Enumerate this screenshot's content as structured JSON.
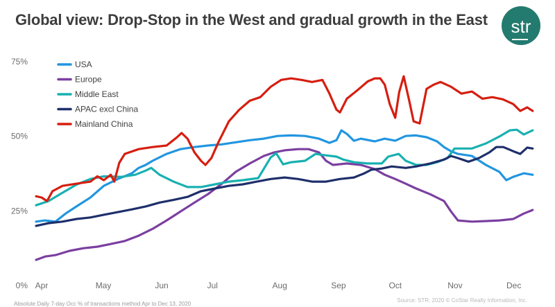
{
  "header": {
    "title": "Global view: Drop-Stop in the West and gradual growth in the East",
    "logo_text": "str"
  },
  "footer": {
    "source": "Source: STR. 2020 © CoStar Realty Information, Inc.",
    "footnote": "Absolute Daily 7-day Occ % of transactions method Apr to Dec 13, 2020"
  },
  "chart_data": {
    "type": "line",
    "title": "Global view: Drop-Stop in the West and gradual growth in the East",
    "xlabel": "",
    "ylabel": "",
    "x_unit": "fraction of period Apr 1 – mid Dec 2020",
    "x_tick_labels": [
      "Apr",
      "May",
      "Jun",
      "Jul",
      "Aug",
      "Sep",
      "Oct",
      "Nov",
      "Dec"
    ],
    "x_tick_positions": [
      0.0,
      0.124,
      0.241,
      0.343,
      0.478,
      0.596,
      0.71,
      0.83,
      0.948
    ],
    "y_tick_labels": [
      "0%",
      "25%",
      "50%",
      "75%"
    ],
    "y_ticks": [
      0,
      25,
      50,
      75
    ],
    "ylim": [
      0,
      75
    ],
    "grid": false,
    "legend_position": "top-left",
    "series": [
      {
        "name": "USA",
        "color": "#2196e0",
        "x": [
          0.0,
          0.018,
          0.039,
          0.06,
          0.081,
          0.109,
          0.136,
          0.164,
          0.192,
          0.206,
          0.22,
          0.234,
          0.262,
          0.29,
          0.318,
          0.345,
          0.373,
          0.401,
          0.429,
          0.457,
          0.485,
          0.512,
          0.54,
          0.568,
          0.589,
          0.603,
          0.613,
          0.624,
          0.638,
          0.652,
          0.68,
          0.7,
          0.721,
          0.742,
          0.763,
          0.784,
          0.805,
          0.819,
          0.833,
          0.847,
          0.875,
          0.903,
          0.93,
          0.944,
          0.958,
          0.979,
          0.997
        ],
        "values": [
          21.4,
          21.8,
          21.4,
          24.2,
          26.5,
          29.5,
          33.4,
          35.7,
          37.6,
          39.4,
          40.4,
          41.8,
          44.1,
          45.7,
          46.4,
          46.9,
          47.3,
          48.0,
          48.7,
          49.2,
          50.1,
          50.3,
          50.1,
          49.2,
          47.8,
          48.7,
          52.0,
          50.8,
          48.5,
          49.2,
          48.3,
          49.2,
          48.5,
          50.1,
          50.3,
          49.7,
          48.3,
          46.4,
          45.0,
          44.1,
          43.4,
          40.4,
          38.1,
          35.3,
          36.4,
          37.6,
          37.1
        ]
      },
      {
        "name": "Europe",
        "color": "#7b3fa0",
        "x": [
          0.0,
          0.018,
          0.039,
          0.067,
          0.095,
          0.123,
          0.15,
          0.178,
          0.206,
          0.234,
          0.262,
          0.29,
          0.318,
          0.345,
          0.373,
          0.401,
          0.429,
          0.457,
          0.478,
          0.499,
          0.526,
          0.547,
          0.568,
          0.582,
          0.596,
          0.624,
          0.652,
          0.68,
          0.7,
          0.721,
          0.742,
          0.763,
          0.791,
          0.819,
          0.833,
          0.847,
          0.875,
          0.903,
          0.93,
          0.958,
          0.979,
          0.997
        ],
        "values": [
          8.6,
          9.7,
          10.2,
          11.6,
          12.5,
          13.0,
          13.9,
          14.9,
          16.7,
          19.0,
          21.8,
          24.8,
          27.8,
          30.6,
          34.1,
          38.1,
          40.9,
          43.4,
          44.6,
          45.3,
          45.7,
          45.7,
          44.6,
          41.8,
          40.4,
          40.9,
          40.4,
          39.0,
          37.1,
          35.7,
          34.1,
          32.5,
          30.6,
          28.3,
          24.8,
          21.8,
          21.4,
          21.6,
          21.8,
          22.3,
          24.1,
          25.3
        ]
      },
      {
        "name": "Middle East",
        "color": "#19b0b0",
        "x": [
          0.0,
          0.025,
          0.053,
          0.081,
          0.109,
          0.136,
          0.171,
          0.199,
          0.22,
          0.231,
          0.248,
          0.276,
          0.304,
          0.331,
          0.359,
          0.387,
          0.415,
          0.446,
          0.471,
          0.482,
          0.496,
          0.512,
          0.54,
          0.561,
          0.582,
          0.603,
          0.617,
          0.638,
          0.666,
          0.694,
          0.707,
          0.728,
          0.742,
          0.763,
          0.784,
          0.805,
          0.826,
          0.84,
          0.854,
          0.875,
          0.903,
          0.93,
          0.951,
          0.965,
          0.979,
          0.997
        ],
        "values": [
          26.9,
          28.3,
          31.1,
          33.8,
          35.7,
          36.6,
          36.4,
          37.1,
          38.5,
          39.4,
          37.1,
          34.8,
          33.0,
          33.0,
          33.9,
          34.8,
          35.3,
          36.0,
          42.9,
          44.3,
          40.6,
          41.3,
          41.8,
          44.1,
          43.6,
          43.2,
          42.2,
          41.3,
          40.9,
          40.9,
          43.2,
          44.1,
          41.8,
          40.4,
          40.4,
          41.3,
          42.7,
          45.9,
          45.9,
          45.9,
          47.6,
          49.9,
          52.0,
          52.2,
          50.6,
          52.0
        ]
      },
      {
        "name": "APAC excl China",
        "color": "#1e2f6b",
        "x": [
          0.0,
          0.025,
          0.053,
          0.081,
          0.109,
          0.136,
          0.164,
          0.192,
          0.22,
          0.248,
          0.276,
          0.304,
          0.331,
          0.359,
          0.387,
          0.415,
          0.443,
          0.471,
          0.499,
          0.526,
          0.554,
          0.582,
          0.61,
          0.638,
          0.659,
          0.673,
          0.694,
          0.714,
          0.742,
          0.763,
          0.791,
          0.819,
          0.833,
          0.847,
          0.868,
          0.889,
          0.91,
          0.924,
          0.938,
          0.958,
          0.972,
          0.986,
          0.997
        ],
        "values": [
          20.0,
          20.9,
          21.4,
          22.3,
          22.8,
          23.7,
          24.6,
          25.5,
          26.5,
          27.8,
          28.7,
          29.7,
          31.6,
          32.5,
          33.4,
          33.9,
          34.8,
          35.7,
          36.2,
          35.7,
          34.8,
          34.8,
          35.7,
          36.2,
          37.6,
          38.8,
          39.2,
          39.9,
          39.4,
          39.9,
          40.9,
          42.2,
          43.4,
          42.7,
          41.5,
          42.7,
          44.6,
          46.4,
          46.4,
          45.0,
          44.1,
          46.2,
          45.9
        ]
      },
      {
        "name": "Mainland China",
        "color": "#d61e10",
        "x": [
          0.0,
          0.011,
          0.022,
          0.033,
          0.053,
          0.081,
          0.109,
          0.123,
          0.136,
          0.15,
          0.157,
          0.167,
          0.178,
          0.206,
          0.234,
          0.262,
          0.283,
          0.292,
          0.304,
          0.318,
          0.331,
          0.34,
          0.352,
          0.366,
          0.387,
          0.408,
          0.429,
          0.45,
          0.471,
          0.492,
          0.512,
          0.533,
          0.554,
          0.575,
          0.589,
          0.603,
          0.61,
          0.624,
          0.645,
          0.666,
          0.68,
          0.691,
          0.7,
          0.71,
          0.721,
          0.729,
          0.738,
          0.749,
          0.758,
          0.77,
          0.784,
          0.798,
          0.812,
          0.833,
          0.854,
          0.875,
          0.896,
          0.916,
          0.937,
          0.958,
          0.972,
          0.986,
          0.997
        ],
        "values": [
          29.9,
          29.5,
          28.3,
          31.6,
          33.4,
          34.1,
          34.8,
          36.6,
          35.3,
          37.1,
          34.8,
          41.1,
          44.1,
          45.7,
          46.4,
          46.9,
          49.7,
          51.1,
          49.2,
          44.6,
          41.8,
          40.4,
          42.7,
          48.0,
          55.0,
          58.9,
          61.9,
          63.1,
          66.6,
          68.9,
          69.4,
          68.9,
          68.2,
          68.9,
          64.3,
          58.9,
          58.0,
          62.6,
          65.4,
          68.4,
          69.4,
          69.4,
          67.3,
          60.8,
          56.2,
          64.8,
          70.1,
          62.0,
          55.0,
          54.3,
          65.9,
          67.3,
          68.2,
          66.6,
          64.3,
          65.0,
          62.6,
          63.1,
          62.4,
          60.8,
          58.5,
          59.7,
          58.5
        ]
      }
    ]
  }
}
